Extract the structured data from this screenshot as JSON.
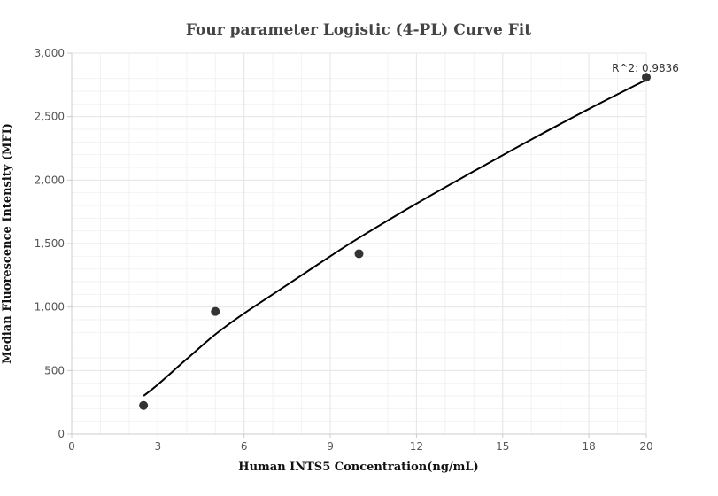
{
  "chart_data": {
    "type": "scatter",
    "title": "Four parameter Logistic (4-PL) Curve Fit",
    "xlabel": "Human INTS5 Concentration(ng/mL)",
    "ylabel": "Median Fluorescence Intensity (MFI)",
    "xlim": [
      0,
      20
    ],
    "ylim": [
      0,
      3000
    ],
    "x_ticks": [
      0,
      3,
      6,
      9,
      12,
      15,
      18,
      20
    ],
    "x_tick_labels": [
      "0",
      "3",
      "6",
      "9",
      "12",
      "15",
      "18",
      "20"
    ],
    "y_ticks": [
      0,
      500,
      1000,
      1500,
      2000,
      2500,
      3000
    ],
    "y_tick_labels": [
      "0",
      "500",
      "1,000",
      "1,500",
      "2,000",
      "2,500",
      "3,000"
    ],
    "grid": true,
    "points": [
      {
        "x": 2.5,
        "y": 225
      },
      {
        "x": 5,
        "y": 965
      },
      {
        "x": 10,
        "y": 1420
      },
      {
        "x": 20,
        "y": 2810
      }
    ],
    "fit_curve": [
      {
        "x": 2.5,
        "y": 300
      },
      {
        "x": 3,
        "y": 390
      },
      {
        "x": 4,
        "y": 590
      },
      {
        "x": 5,
        "y": 785
      },
      {
        "x": 6,
        "y": 950
      },
      {
        "x": 7,
        "y": 1100
      },
      {
        "x": 8,
        "y": 1250
      },
      {
        "x": 9,
        "y": 1400
      },
      {
        "x": 10,
        "y": 1545
      },
      {
        "x": 12,
        "y": 1815
      },
      {
        "x": 14,
        "y": 2070
      },
      {
        "x": 16,
        "y": 2320
      },
      {
        "x": 18,
        "y": 2560
      },
      {
        "x": 20,
        "y": 2790
      }
    ],
    "annotation": {
      "text": "R^2: 0.9836",
      "x": 20,
      "y": 2810
    },
    "colors": {
      "points": "#333333",
      "curve": "#000000",
      "grid": "#e6e6e6",
      "axis": "#cccccc"
    }
  }
}
